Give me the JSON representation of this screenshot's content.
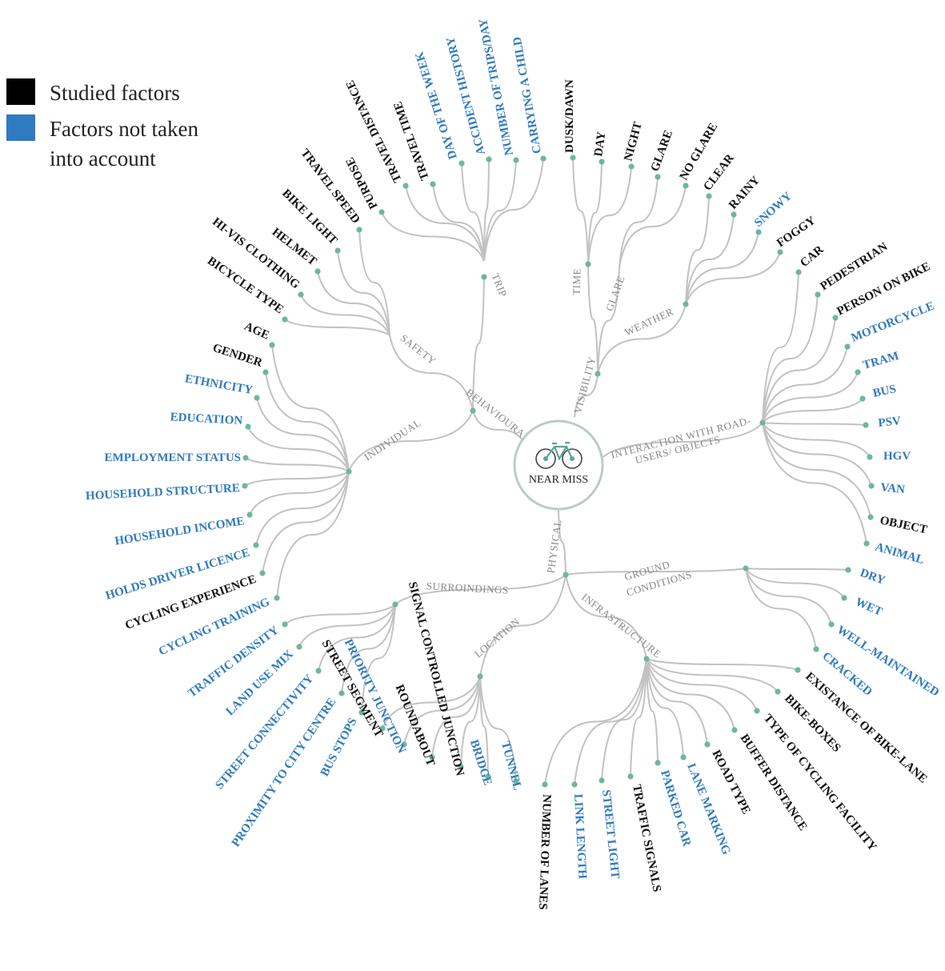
{
  "legend": {
    "studied": {
      "label": "Studied factors",
      "color": "#000000"
    },
    "not_taken": {
      "line1": "Factors not taken",
      "line2": "into account",
      "color": "#2f7ac0"
    }
  },
  "center": {
    "label": "NEAR MISS",
    "icon": "bicycle-icon"
  },
  "colors": {
    "studied": "#111111",
    "not_taken": "#2f7ac0",
    "link": "#c2c2c2",
    "node": "#6cb89a",
    "branch_text": "#888888"
  },
  "tree": {
    "branches": [
      {
        "name": "behavioural",
        "label": "BEHAVIOURAL",
        "children": [
          {
            "name": "trip",
            "label": "TRIP",
            "leaves": [
              {
                "label": "PURPOSE",
                "studied": true
              },
              {
                "label": "TRAVEL DISTANCE",
                "studied": true
              },
              {
                "label": "TRAVEL TIME",
                "studied": true
              },
              {
                "label": "DAY OF THE WEEK",
                "studied": false
              },
              {
                "label": "ACCIDENT HISTORY",
                "studied": false
              },
              {
                "label": "NUMBER OF TRIPS/DAY",
                "studied": false
              },
              {
                "label": "CARRYING A CHILD",
                "studied": false
              }
            ]
          },
          {
            "name": "safety",
            "label": "SAFETY",
            "leaves": [
              {
                "label": "BICYCLE TYPE",
                "studied": true
              },
              {
                "label": "HI-VIS  CLOTHING",
                "studied": true
              },
              {
                "label": "HELMET",
                "studied": true
              },
              {
                "label": "BIKE LIGHT",
                "studied": true
              },
              {
                "label": "TRAVEL SPEED",
                "studied": true
              }
            ]
          },
          {
            "name": "individual",
            "label": "INDIVIDUAL",
            "leaves": [
              {
                "label": "AGE",
                "studied": true
              },
              {
                "label": "GENDER",
                "studied": true
              },
              {
                "label": "ETHNICITY",
                "studied": false
              },
              {
                "label": "EDUCATION",
                "studied": false
              },
              {
                "label": "EMPLOYMENT STATUS",
                "studied": false
              },
              {
                "label": "HOUSEHOLD STRUCTURE",
                "studied": false
              },
              {
                "label": "HOUSEHOLD INCOME",
                "studied": false
              },
              {
                "label": "HOLDS DRIVER LICENCE",
                "studied": false
              },
              {
                "label": "CYCLING EXPERIENCE",
                "studied": true
              },
              {
                "label": "CYCLING TRAINING",
                "studied": false
              }
            ]
          }
        ]
      },
      {
        "name": "visibility",
        "label": "VISIBILITY",
        "children": [
          {
            "name": "time",
            "label": "TIME",
            "leaves": [
              {
                "label": "DUSK/DAWN",
                "studied": true
              },
              {
                "label": "DAY",
                "studied": true
              },
              {
                "label": "NIGHT",
                "studied": true
              }
            ]
          },
          {
            "name": "glare",
            "label": "GLARE",
            "leaves": [
              {
                "label": "GLARE",
                "studied": true
              },
              {
                "label": "NO GLARE",
                "studied": true
              }
            ]
          },
          {
            "name": "weather",
            "label": "WEATHER",
            "leaves": [
              {
                "label": "CLEAR",
                "studied": true
              },
              {
                "label": "RAINY",
                "studied": true
              },
              {
                "label": "SNOWY",
                "studied": false
              },
              {
                "label": "FOGGY",
                "studied": true
              }
            ]
          }
        ]
      },
      {
        "name": "interaction",
        "label_line1": "INTERACTION WITH ROAD-",
        "label_line2": "USERS/ OBJECTS",
        "leaves": [
          {
            "label": "CAR",
            "studied": true
          },
          {
            "label": "PEDESTRIAN",
            "studied": true
          },
          {
            "label": "PERSON ON BIKE",
            "studied": true
          },
          {
            "label": "MOTORCYCLE",
            "studied": false
          },
          {
            "label": "TRAM",
            "studied": false
          },
          {
            "label": "BUS",
            "studied": false
          },
          {
            "label": "PSV",
            "studied": false
          },
          {
            "label": "HGV",
            "studied": false
          },
          {
            "label": "VAN",
            "studied": false
          },
          {
            "label": "OBJECT",
            "studied": true
          },
          {
            "label": "ANIMAL",
            "studied": false
          }
        ]
      },
      {
        "name": "physical",
        "label": "PHYSICAL",
        "children": [
          {
            "name": "ground",
            "label_line1": "GROUND",
            "label_line2": "CONDITIONS",
            "leaves": [
              {
                "label": "DRY",
                "studied": false
              },
              {
                "label": "WET",
                "studied": false
              },
              {
                "label": "WELL-MAINTAINED",
                "studied": false
              },
              {
                "label": "CRACKED",
                "studied": false
              }
            ]
          },
          {
            "name": "infrastructure",
            "label": "INFRASTRUCTURE",
            "leaves": [
              {
                "label": "EXISTANCE OF BIKE-LANE",
                "studied": true
              },
              {
                "label": "BIKE-BOXES",
                "studied": true
              },
              {
                "label": "TYPE OF CYCLING FACILITY",
                "studied": true
              },
              {
                "label": "BUFFER DISTANCE",
                "studied": true
              },
              {
                "label": "ROAD TYPE",
                "studied": true
              },
              {
                "label": "LANE MARKING",
                "studied": false
              },
              {
                "label": "PARKED CAR",
                "studied": false
              },
              {
                "label": "TRAFFIC SIGNALS",
                "studied": true
              },
              {
                "label": "STREET LIGHT",
                "studied": false
              },
              {
                "label": "LINK LENGTH",
                "studied": false
              },
              {
                "label": "NUMBER OF LANES",
                "studied": true
              }
            ]
          },
          {
            "name": "location",
            "label": "LOCATION",
            "leaves": [
              {
                "label": "TUNNEL",
                "studied": false
              },
              {
                "label": "BRIDGE",
                "studied": false
              },
              {
                "label": "SIGNAL CONTROLLED JUNCTION",
                "studied": true
              },
              {
                "label": "ROUNDABOUT",
                "studied": true
              },
              {
                "label": "PRIORITY JUNCTION",
                "studied": false
              },
              {
                "label": "STREET SEGMENT",
                "studied": true
              }
            ]
          },
          {
            "name": "surroundings",
            "label": "SURROINDINGS",
            "leaves": [
              {
                "label": "BUS STOPS",
                "studied": false
              },
              {
                "label": "PROXIMITY TO CITY CENTRE",
                "studied": false
              },
              {
                "label": "STREET CONNECTIVITY",
                "studied": false
              },
              {
                "label": "LAND USE MIX",
                "studied": false
              },
              {
                "label": "TRAFFIC DENSITY",
                "studied": false
              }
            ]
          }
        ]
      }
    ]
  }
}
